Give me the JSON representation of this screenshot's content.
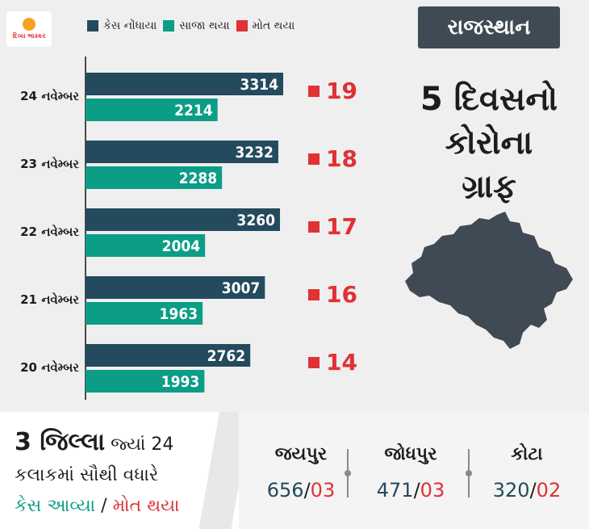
{
  "brand": {
    "logo_text": "દિવ્ય ભાસ્કર"
  },
  "legend": [
    {
      "label": "કેસ નોંધાયા",
      "color": "#244a5e"
    },
    {
      "label": "સાજા થયા",
      "color": "#0c9d87"
    },
    {
      "label": "મોત થયા",
      "color": "#e03134"
    }
  ],
  "state_badge": "રાજસ્થાન",
  "side_title_lines": [
    "5 દિવસનો",
    "કોરોના",
    "ગ્રાફ"
  ],
  "chart_data": {
    "type": "bar",
    "orientation": "horizontal",
    "categories": [
      "24 નવેમ્બર",
      "23 નવેમ્બર",
      "22 નવેમ્બર",
      "21 નવેમ્બર",
      "20 નવેમ્બર"
    ],
    "series": [
      {
        "name": "કેસ નોંધાયા",
        "values": [
          3314,
          3232,
          3260,
          3007,
          2762
        ],
        "color": "#244a5e"
      },
      {
        "name": "સાજા થયા",
        "values": [
          2214,
          2288,
          2004,
          1963,
          1993
        ],
        "color": "#0c9d87"
      },
      {
        "name": "મોત થયા",
        "values": [
          19,
          18,
          17,
          16,
          14
        ],
        "color": "#e03134"
      }
    ],
    "xlim": [
      0,
      3800
    ],
    "grid": false,
    "legend_position": "top"
  },
  "bottom": {
    "line1_big": "3 જિલ્લા",
    "line1_rest": " જ્યાં 24",
    "line2": "કલાકમાં સૌથી વધારે",
    "line3_cases": "કેસ આવ્યા",
    "line3_sep": " / ",
    "line3_deaths": "મોત થયા",
    "cities": [
      {
        "name": "જયપુર",
        "cases": "656",
        "deaths": "03"
      },
      {
        "name": "જોધપુર",
        "cases": "471",
        "deaths": "03"
      },
      {
        "name": "કોટા",
        "cases": "320",
        "deaths": "02"
      }
    ],
    "slash": "/"
  }
}
